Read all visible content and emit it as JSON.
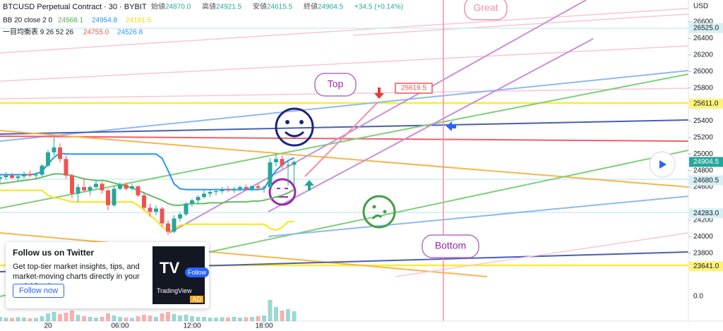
{
  "header": {
    "symbol": "BTCUSD Perpetual Contract · 30 · BYBIT",
    "ohlc": [
      {
        "label": "始値",
        "value": "24870.0"
      },
      {
        "label": "高値",
        "value": "24921.5"
      },
      {
        "label": "安値",
        "value": "24615.5"
      },
      {
        "label": "終値",
        "value": "24904.5"
      }
    ],
    "change": "+34.5 (+0.14%)"
  },
  "indicators": [
    {
      "name": "BB 20 close 2 0",
      "values": [
        "24568.1",
        "24954.8",
        "24181.5"
      ],
      "colors": [
        "#4caf50",
        "#2196f3",
        "#f5d60f"
      ]
    },
    {
      "name": "一目均衡表 9 26 52 26",
      "values": [
        "24755.0",
        "24526.8"
      ],
      "colors": [
        "#ef5350",
        "#2196f3"
      ]
    }
  ],
  "chart_data": {
    "type": "candlestick",
    "currency": "USD",
    "ohlc": [
      [
        24700,
        24760,
        24650,
        24720
      ],
      [
        24720,
        24780,
        24690,
        24740
      ],
      [
        24740,
        24770,
        24700,
        24710
      ],
      [
        24710,
        24750,
        24680,
        24730
      ],
      [
        24730,
        24790,
        24700,
        24760
      ],
      [
        24760,
        24800,
        24720,
        24740
      ],
      [
        24740,
        24780,
        24690,
        24750
      ],
      [
        24750,
        24880,
        24730,
        24860
      ],
      [
        24860,
        25050,
        24840,
        25020
      ],
      [
        25020,
        25200,
        24980,
        25080
      ],
      [
        25080,
        25130,
        24900,
        24940
      ],
      [
        24940,
        24980,
        24700,
        24740
      ],
      [
        24740,
        24760,
        24470,
        24520
      ],
      [
        24520,
        24640,
        24420,
        24600
      ],
      [
        24600,
        24700,
        24540,
        24560
      ],
      [
        24560,
        24620,
        24500,
        24600
      ],
      [
        24600,
        24680,
        24580,
        24640
      ],
      [
        24640,
        24660,
        24520,
        24560
      ],
      [
        24560,
        24580,
        24320,
        24380
      ],
      [
        24380,
        24620,
        24360,
        24580
      ],
      [
        24580,
        24660,
        24560,
        24630
      ],
      [
        24630,
        24650,
        24560,
        24580
      ],
      [
        24580,
        24640,
        24560,
        24610
      ],
      [
        24610,
        24620,
        24480,
        24500
      ],
      [
        24500,
        24540,
        24320,
        24350
      ],
      [
        24350,
        24400,
        24240,
        24300
      ],
      [
        24300,
        24380,
        24260,
        24340
      ],
      [
        24340,
        24360,
        24120,
        24160
      ],
      [
        24160,
        24200,
        24020,
        24060
      ],
      [
        24060,
        24260,
        24040,
        24220
      ],
      [
        24220,
        24300,
        24180,
        24270
      ],
      [
        24270,
        24420,
        24250,
        24400
      ],
      [
        24400,
        24460,
        24360,
        24440
      ],
      [
        24440,
        24500,
        24400,
        24480
      ],
      [
        24480,
        24560,
        24460,
        24520
      ],
      [
        24520,
        24570,
        24480,
        24540
      ],
      [
        24540,
        24580,
        24500,
        24550
      ],
      [
        24550,
        24600,
        24520,
        24570
      ],
      [
        24570,
        24610,
        24540,
        24560
      ],
      [
        24560,
        24600,
        24530,
        24580
      ],
      [
        24580,
        24620,
        24550,
        24600
      ],
      [
        24600,
        24630,
        24560,
        24580
      ],
      [
        24580,
        24620,
        24550,
        24610
      ],
      [
        24610,
        24640,
        24560,
        24590
      ],
      [
        24590,
        24620,
        24530,
        24600
      ],
      [
        24600,
        24950,
        24580,
        24900
      ],
      [
        24900,
        25000,
        24850,
        24940
      ],
      [
        24940,
        24990,
        24820,
        24860
      ],
      [
        24860,
        24920,
        24620,
        24870
      ],
      [
        24870,
        24921.5,
        24615.5,
        24904.5
      ]
    ],
    "series": [
      {
        "name": "BB upper",
        "color": "#2196f3",
        "values": [
          24750,
          24750,
          24750,
          24750,
          24750,
          24750,
          24760,
          24790,
          24880,
          24960,
          25010,
          25000,
          25000,
          25000,
          25000,
          25000,
          25000,
          25000,
          25000,
          25000,
          25000,
          25000,
          25000,
          25000,
          25000,
          25000,
          25000,
          24950,
          24800,
          24640,
          24580,
          24570,
          24570,
          24570,
          24570,
          24570,
          24570,
          24570,
          24570,
          24570,
          24570,
          24570,
          24570,
          24570,
          24580,
          24700,
          24800,
          24870,
          24920,
          24954.8
        ]
      },
      {
        "name": "BB basis",
        "color": "#66bb6a",
        "values": [
          24640,
          24650,
          24660,
          24670,
          24680,
          24690,
          24700,
          24720,
          24740,
          24760,
          24760,
          24750,
          24740,
          24720,
          24700,
          24690,
          24680,
          24680,
          24670,
          24650,
          24630,
          24610,
          24590,
          24560,
          24530,
          24500,
          24470,
          24440,
          24400,
          24380,
          24380,
          24390,
          24400,
          24400,
          24400,
          24410,
          24410,
          24410,
          24420,
          24420,
          24420,
          24420,
          24430,
          24430,
          24440,
          24460,
          24480,
          24500,
          24530,
          24568.1
        ]
      },
      {
        "name": "BB lower",
        "color": "#f5e614",
        "values": [
          24560,
          24560,
          24560,
          24560,
          24560,
          24560,
          24560,
          24560,
          24500,
          24470,
          24460,
          24440,
          24420,
          24420,
          24420,
          24420,
          24420,
          24420,
          24420,
          24420,
          24420,
          24420,
          24420,
          24380,
          24320,
          24260,
          24200,
          24120,
          24060,
          24090,
          24140,
          24150,
          24150,
          24150,
          24150,
          24150,
          24150,
          24150,
          24150,
          24150,
          24150,
          24150,
          24150,
          24150,
          24150,
          24100,
          24080,
          24110,
          24180,
          24181.5
        ]
      }
    ],
    "volume": [
      12,
      10,
      9,
      11,
      10,
      8,
      9,
      14,
      22,
      26,
      20,
      24,
      30,
      18,
      14,
      12,
      10,
      12,
      22,
      16,
      12,
      10,
      9,
      14,
      18,
      16,
      12,
      22,
      26,
      20,
      16,
      18,
      14,
      12,
      12,
      10,
      10,
      11,
      10,
      12,
      10,
      11,
      12,
      14,
      16,
      60,
      40,
      30,
      34,
      28
    ],
    "volume_ylim": [
      0,
      100
    ],
    "lower_ticks": [
      {
        "value": 0,
        "label": "0.0"
      }
    ],
    "ylim": [
      23490,
      26865
    ],
    "yticks": [
      23800,
      24000,
      24200,
      24600,
      24800,
      25000,
      25200,
      25400,
      25800,
      26000,
      26200,
      26400,
      26600
    ],
    "xticks": [
      {
        "value": 8,
        "label": "20"
      },
      {
        "value": 20,
        "label": "06:00"
      },
      {
        "value": 32,
        "label": "12:00"
      },
      {
        "value": 44,
        "label": "18:00"
      }
    ],
    "price_labels": [
      {
        "value": 26525,
        "label": "26525.0",
        "color": "#d6f0f4"
      },
      {
        "value": 25611,
        "label": "25611.0",
        "color": "#fff27a"
      },
      {
        "value": 24904.5,
        "label": "24904.5",
        "color": "#26a69a"
      },
      {
        "value": 24680.5,
        "label": "24680.5",
        "color": "#d6f0f4"
      },
      {
        "value": 24283,
        "label": "24283.0",
        "color": "#d6f0f4"
      },
      {
        "value": 23641,
        "label": "23641.0",
        "color": "#fff27a"
      }
    ],
    "up_color": "#26a69a",
    "down_color": "#ef5350"
  },
  "annotations": {
    "great": "Great",
    "top": "Top",
    "price_note": "25619.5",
    "bottom": "Bottom"
  },
  "popup": {
    "title": "Follow us on Twitter",
    "body": "Get top-tier market insights, tips, and market-moving charts directly in your social feed.",
    "button": "Follow now",
    "brand": "TradingView",
    "follow": "Follow",
    "ad": "AD"
  }
}
